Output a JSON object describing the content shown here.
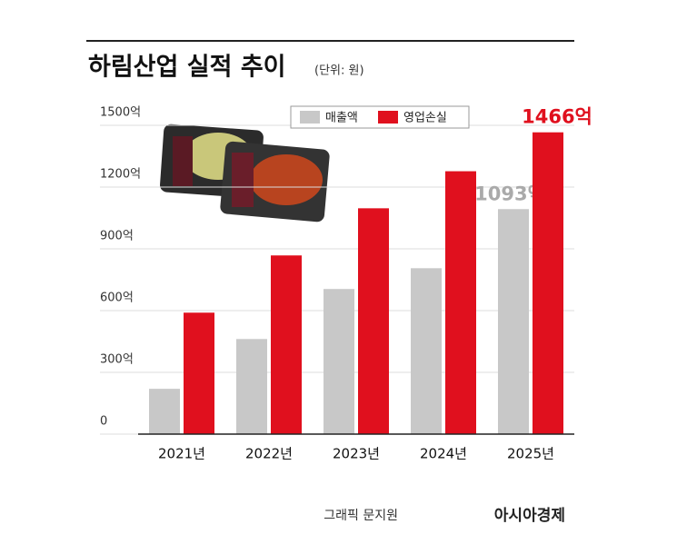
{
  "chart_data": {
    "type": "bar",
    "title": "하림산업 실적 추이",
    "subtitle": "(단위: 원)",
    "categories": [
      "2021년",
      "2022년",
      "2023년",
      "2024년",
      "2025년"
    ],
    "series": [
      {
        "name": "매출액",
        "color": "#c8c8c8",
        "values": [
          220,
          462,
          705,
          806,
          1093
        ],
        "value_labels": [
          null,
          null,
          null,
          null,
          "1093억"
        ]
      },
      {
        "name": "영업손실",
        "color": "#e0101e",
        "values": [
          590,
          868,
          1097,
          1277,
          1466
        ],
        "value_labels": [
          null,
          null,
          null,
          null,
          "1466억"
        ]
      }
    ],
    "ylim": [
      0,
      1500
    ],
    "yticks": [
      0,
      {
        "value": 300,
        "label": "300억"
      },
      {
        "value": 600,
        "label": "600억"
      },
      {
        "value": 900,
        "label": "900억"
      },
      {
        "value": 1200,
        "label": "1200억"
      },
      {
        "value": 1500,
        "label": "1500억"
      }
    ],
    "grid": true,
    "credit": "그래픽 문지원",
    "publisher": "아시아경제"
  }
}
